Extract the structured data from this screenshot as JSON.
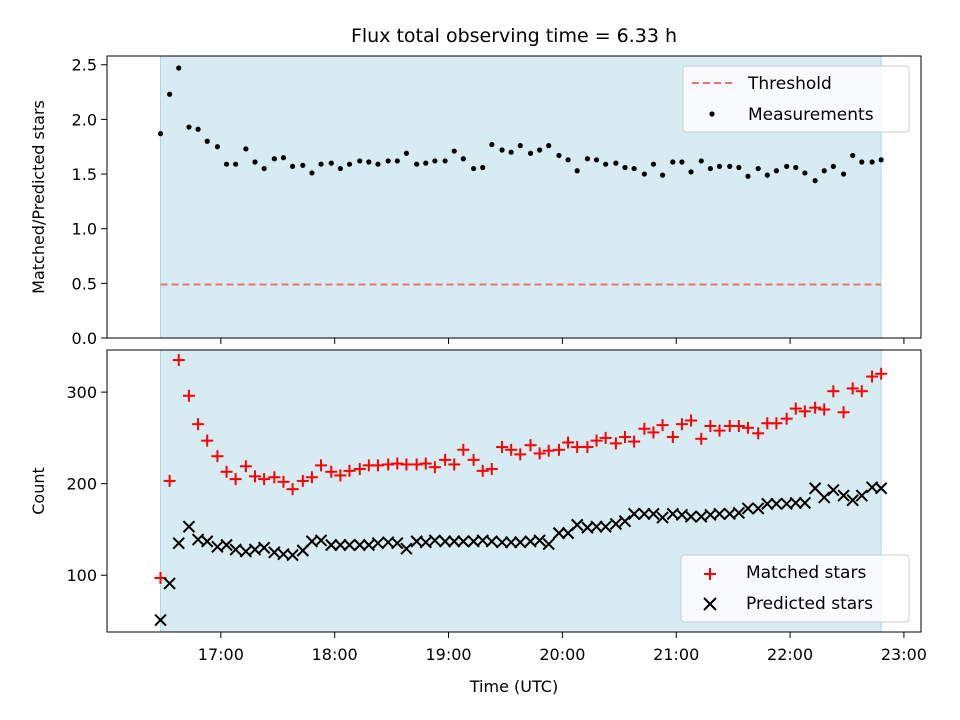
{
  "title": "Flux total observing time = 6.33 h",
  "colors": {
    "shade": "#add8e6",
    "threshold": "#f07070",
    "matched": "#ff0000",
    "predicted": "#000000",
    "measurement": "#000000"
  },
  "chart_data": [
    {
      "type": "scatter",
      "ylabel": "Matched/Predicted stars",
      "xlabel": "",
      "ylim": [
        0,
        2.58
      ],
      "yticks": [
        "0.0",
        "0.5",
        "1.0",
        "1.5",
        "2.0",
        "2.5"
      ],
      "ytick_values": [
        0,
        0.5,
        1.0,
        1.5,
        2.0,
        2.5
      ],
      "x_range_hours": [
        16.0,
        23.15
      ],
      "shaded_span_hours": [
        16.47,
        22.8
      ],
      "legend": {
        "position": "top-right",
        "entries": [
          "Threshold",
          "Measurements"
        ]
      },
      "threshold": {
        "name": "Threshold",
        "value": 0.49
      },
      "series": [
        {
          "name": "Measurements",
          "x_hours": [
            16.47,
            16.55,
            16.63,
            16.72,
            16.8,
            16.88,
            16.97,
            17.05,
            17.13,
            17.22,
            17.3,
            17.38,
            17.47,
            17.55,
            17.63,
            17.72,
            17.8,
            17.88,
            17.97,
            18.05,
            18.13,
            18.22,
            18.3,
            18.38,
            18.47,
            18.55,
            18.63,
            18.72,
            18.8,
            18.88,
            18.97,
            19.05,
            19.13,
            19.22,
            19.3,
            19.38,
            19.47,
            19.55,
            19.63,
            19.72,
            19.8,
            19.88,
            19.97,
            20.05,
            20.13,
            20.22,
            20.3,
            20.38,
            20.47,
            20.55,
            20.63,
            20.72,
            20.8,
            20.88,
            20.97,
            21.05,
            21.13,
            21.22,
            21.3,
            21.38,
            21.47,
            21.55,
            21.63,
            21.72,
            21.8,
            21.88,
            21.97,
            22.05,
            22.13,
            22.22,
            22.3,
            22.38,
            22.47,
            22.55,
            22.63,
            22.72,
            22.8
          ],
          "y": [
            1.87,
            2.23,
            2.47,
            1.93,
            1.91,
            1.8,
            1.75,
            1.59,
            1.59,
            1.73,
            1.61,
            1.55,
            1.64,
            1.65,
            1.57,
            1.58,
            1.51,
            1.59,
            1.6,
            1.55,
            1.59,
            1.62,
            1.61,
            1.59,
            1.62,
            1.62,
            1.69,
            1.59,
            1.6,
            1.62,
            1.62,
            1.71,
            1.64,
            1.55,
            1.56,
            1.77,
            1.72,
            1.7,
            1.76,
            1.69,
            1.72,
            1.76,
            1.67,
            1.63,
            1.53,
            1.64,
            1.63,
            1.59,
            1.6,
            1.56,
            1.55,
            1.5,
            1.59,
            1.49,
            1.61,
            1.61,
            1.52,
            1.62,
            1.55,
            1.57,
            1.57,
            1.56,
            1.48,
            1.55,
            1.49,
            1.53,
            1.57,
            1.56,
            1.51,
            1.44,
            1.53,
            1.57,
            1.5,
            1.67,
            1.61,
            1.61,
            1.63
          ]
        }
      ]
    },
    {
      "type": "scatter",
      "ylabel": "Count",
      "xlabel": "Time (UTC)",
      "ylim": [
        38,
        346
      ],
      "yticks": [
        "100",
        "200",
        "300"
      ],
      "ytick_values": [
        100,
        200,
        300
      ],
      "x_range_hours": [
        16.0,
        23.15
      ],
      "xticks": [
        "17:00",
        "18:00",
        "19:00",
        "20:00",
        "21:00",
        "22:00",
        "23:00"
      ],
      "xtick_values_hours": [
        17,
        18,
        19,
        20,
        21,
        22,
        23
      ],
      "shaded_span_hours": [
        16.47,
        22.8
      ],
      "legend": {
        "position": "bottom-right",
        "entries": [
          "Matched stars",
          "Predicted stars"
        ]
      },
      "series": [
        {
          "name": "Matched stars",
          "marker": "plus",
          "x_hours": [
            16.47,
            16.55,
            16.63,
            16.72,
            16.8,
            16.88,
            16.97,
            17.05,
            17.13,
            17.22,
            17.3,
            17.38,
            17.47,
            17.55,
            17.63,
            17.72,
            17.8,
            17.88,
            17.97,
            18.05,
            18.13,
            18.22,
            18.3,
            18.38,
            18.47,
            18.55,
            18.63,
            18.72,
            18.8,
            18.88,
            18.97,
            19.05,
            19.13,
            19.22,
            19.3,
            19.38,
            19.47,
            19.55,
            19.63,
            19.72,
            19.8,
            19.88,
            19.97,
            20.05,
            20.13,
            20.22,
            20.3,
            20.38,
            20.47,
            20.55,
            20.63,
            20.72,
            20.8,
            20.88,
            20.97,
            21.05,
            21.13,
            21.22,
            21.3,
            21.38,
            21.47,
            21.55,
            21.63,
            21.72,
            21.8,
            21.88,
            21.97,
            22.05,
            22.13,
            22.22,
            22.3,
            22.38,
            22.47,
            22.55,
            22.63,
            22.72,
            22.8
          ],
          "y": [
            97,
            203,
            335,
            296,
            265,
            247,
            230,
            213,
            205,
            219,
            208,
            205,
            207,
            202,
            194,
            203,
            207,
            220,
            213,
            209,
            214,
            216,
            220,
            220,
            221,
            222,
            221,
            221,
            222,
            218,
            226,
            221,
            237,
            226,
            214,
            216,
            240,
            237,
            232,
            242,
            233,
            236,
            237,
            245,
            240,
            240,
            247,
            250,
            244,
            251,
            246,
            260,
            256,
            264,
            251,
            265,
            269,
            249,
            263,
            258,
            263,
            263,
            261,
            255,
            266,
            266,
            271,
            282,
            279,
            283,
            281,
            301,
            278,
            304,
            301,
            317,
            320
          ]
        },
        {
          "name": "Predicted stars",
          "marker": "x",
          "x_hours": [
            16.47,
            16.55,
            16.63,
            16.72,
            16.8,
            16.88,
            16.97,
            17.05,
            17.13,
            17.22,
            17.3,
            17.38,
            17.47,
            17.55,
            17.63,
            17.72,
            17.8,
            17.88,
            17.97,
            18.05,
            18.13,
            18.22,
            18.3,
            18.38,
            18.47,
            18.55,
            18.63,
            18.72,
            18.8,
            18.88,
            18.97,
            19.05,
            19.13,
            19.22,
            19.3,
            19.38,
            19.47,
            19.55,
            19.63,
            19.72,
            19.8,
            19.88,
            19.97,
            20.05,
            20.13,
            20.22,
            20.3,
            20.38,
            20.47,
            20.55,
            20.63,
            20.72,
            20.8,
            20.88,
            20.97,
            21.05,
            21.13,
            21.22,
            21.3,
            21.38,
            21.47,
            21.55,
            21.63,
            21.72,
            21.8,
            21.88,
            21.97,
            22.05,
            22.13,
            22.22,
            22.3,
            22.38,
            22.47,
            22.55,
            22.63,
            22.72,
            22.8
          ],
          "y": [
            51,
            91,
            135,
            153,
            139,
            137,
            131,
            133,
            128,
            126,
            128,
            130,
            125,
            123,
            122,
            127,
            137,
            138,
            133,
            133,
            133,
            133,
            133,
            135,
            136,
            135,
            129,
            137,
            136,
            138,
            137,
            137,
            137,
            137,
            138,
            137,
            136,
            136,
            136,
            137,
            138,
            134,
            146,
            146,
            155,
            152,
            153,
            153,
            156,
            159,
            167,
            167,
            167,
            163,
            167,
            166,
            164,
            164,
            166,
            167,
            167,
            168,
            173,
            173,
            178,
            178,
            178,
            179,
            179,
            195,
            185,
            193,
            187,
            182,
            187,
            196,
            195
          ]
        }
      ]
    }
  ]
}
